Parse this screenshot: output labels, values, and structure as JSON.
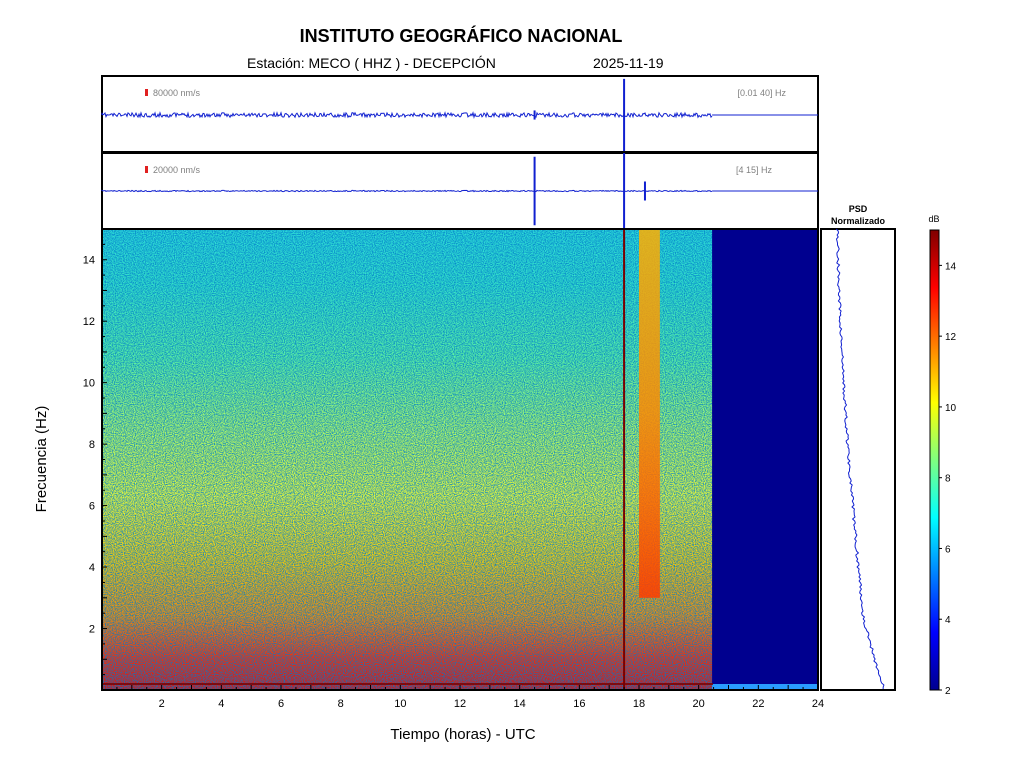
{
  "title": "INSTITUTO GEOGRÁFICO NACIONAL",
  "station_label": "Estación:  MECO ( HHZ ) - DECEPCIÓN",
  "date": "2025-11-19",
  "colors": {
    "trace": "#1020d0",
    "scale_marker": "#e02020",
    "no_data": "#00008f",
    "event_line": "#7a0000"
  },
  "chart_data": [
    {
      "type": "line",
      "name": "waveform-broadband",
      "scale_label": "80000 nm/s",
      "band_label": "[0.01 40] Hz",
      "x_range_hours": [
        0,
        24
      ],
      "data_end_hours": 20.45,
      "events": [
        {
          "time_hours": 14.5,
          "amplitude_rel": 0.12
        },
        {
          "time_hours": 17.5,
          "amplitude_rel": 0.95
        }
      ]
    },
    {
      "type": "line",
      "name": "waveform-filtered",
      "scale_label": "20000 nm/s",
      "band_label": "[4 15] Hz",
      "x_range_hours": [
        0,
        24
      ],
      "data_end_hours": 20.45,
      "events": [
        {
          "time_hours": 14.5,
          "amplitude_rel": 0.9
        },
        {
          "time_hours": 17.5,
          "amplitude_rel": 1.0
        },
        {
          "time_hours": 18.2,
          "amplitude_rel": 0.25
        }
      ]
    },
    {
      "type": "heatmap",
      "xlabel": "Tiempo (horas) - UTC",
      "ylabel": "Frecuencia  (Hz)",
      "xlim": [
        0,
        24
      ],
      "ylim": [
        0,
        15
      ],
      "xticks": [
        2,
        4,
        6,
        8,
        10,
        12,
        14,
        16,
        18,
        20,
        22,
        24
      ],
      "yticks": [
        2,
        4,
        6,
        8,
        10,
        12,
        14
      ],
      "data_end_hours": 20.45,
      "event_line_hours": 17.5,
      "tremor_band": {
        "start_hours": 18.0,
        "end_hours": 18.7,
        "fmin_hz": 3.0,
        "fmax_hz": 15.0
      }
    },
    {
      "type": "line",
      "name": "psd",
      "title": "PSD\nNormalizado",
      "title_line1": "PSD",
      "title_line2": "Normalizado"
    },
    {
      "type": "colorbar",
      "label": "dB",
      "range": [
        2,
        15
      ],
      "ticks": [
        2,
        4,
        6,
        8,
        10,
        12,
        14
      ]
    }
  ]
}
